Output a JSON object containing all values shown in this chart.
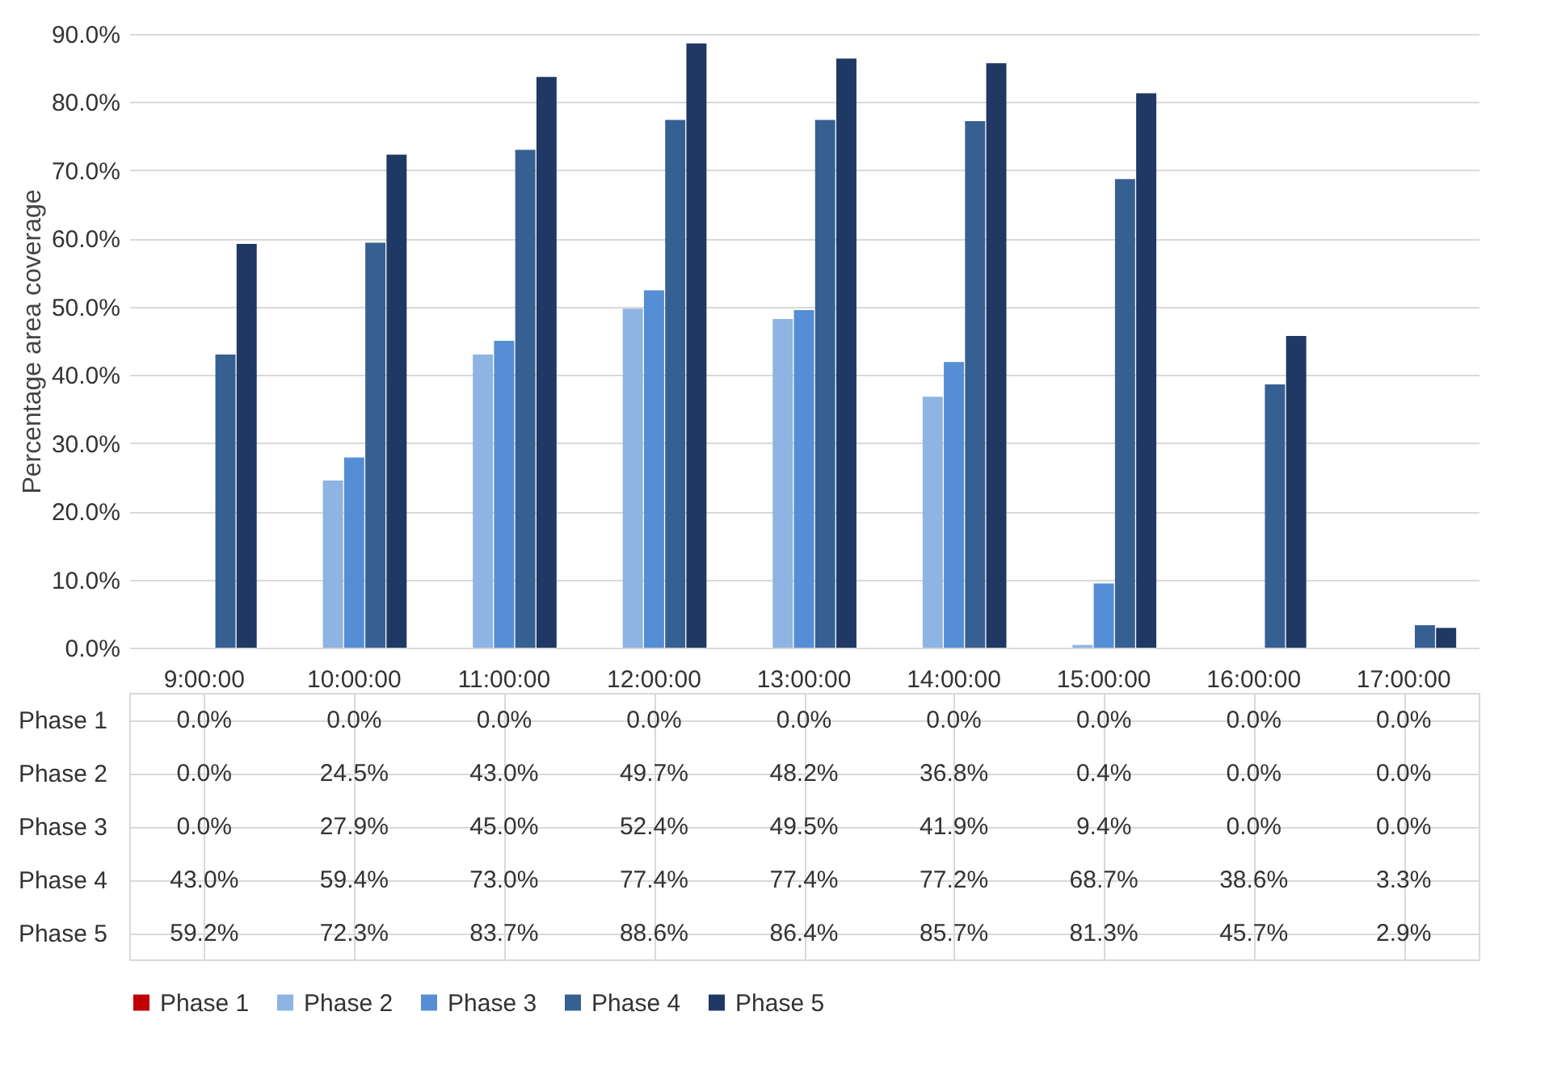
{
  "chart_data": {
    "type": "bar",
    "ylabel": "Percentage area coverage",
    "categories": [
      "9:00:00",
      "10:00:00",
      "11:00:00",
      "12:00:00",
      "13:00:00",
      "14:00:00",
      "15:00:00",
      "16:00:00",
      "17:00:00"
    ],
    "ylim": [
      0,
      90
    ],
    "yticks": [
      {
        "value": 0,
        "label": "0.0%"
      },
      {
        "value": 10,
        "label": "10.0%"
      },
      {
        "value": 20,
        "label": "20.0%"
      },
      {
        "value": 30,
        "label": "30.0%"
      },
      {
        "value": 40,
        "label": "40.0%"
      },
      {
        "value": 50,
        "label": "50.0%"
      },
      {
        "value": 60,
        "label": "60.0%"
      },
      {
        "value": 70,
        "label": "70.0%"
      },
      {
        "value": 80,
        "label": "80.0%"
      },
      {
        "value": 90,
        "label": "90.0%"
      }
    ],
    "grid": "y",
    "legend": "bottom",
    "series": [
      {
        "name": "Phase 1",
        "color": "#c00000",
        "values": [
          0,
          0,
          0,
          0,
          0,
          0,
          0,
          0,
          0
        ],
        "value_labels": [
          "0.0%",
          "0.0%",
          "0.0%",
          "0.0%",
          "0.0%",
          "0.0%",
          "0.0%",
          "0.0%",
          "0.0%"
        ]
      },
      {
        "name": "Phase 2",
        "color": "#8db4e2",
        "values": [
          0,
          24.5,
          43.0,
          49.7,
          48.2,
          36.8,
          0.4,
          0,
          0
        ],
        "value_labels": [
          "0.0%",
          "24.5%",
          "43.0%",
          "49.7%",
          "48.2%",
          "36.8%",
          "0.4%",
          "0.0%",
          "0.0%"
        ]
      },
      {
        "name": "Phase 3",
        "color": "#558ed5",
        "values": [
          0,
          27.9,
          45.0,
          52.4,
          49.5,
          41.9,
          9.4,
          0,
          0
        ],
        "value_labels": [
          "0.0%",
          "27.9%",
          "45.0%",
          "52.4%",
          "49.5%",
          "41.9%",
          "9.4%",
          "0.0%",
          "0.0%"
        ]
      },
      {
        "name": "Phase 4",
        "color": "#376092",
        "values": [
          43.0,
          59.4,
          73.0,
          77.4,
          77.4,
          77.2,
          68.7,
          38.6,
          3.3
        ],
        "value_labels": [
          "43.0%",
          "59.4%",
          "73.0%",
          "77.4%",
          "77.4%",
          "77.2%",
          "68.7%",
          "38.6%",
          "3.3%"
        ]
      },
      {
        "name": "Phase 5",
        "color": "#1f3864",
        "values": [
          59.2,
          72.3,
          83.7,
          88.6,
          86.4,
          85.7,
          81.3,
          45.7,
          2.9
        ],
        "value_labels": [
          "59.2%",
          "72.3%",
          "83.7%",
          "88.6%",
          "86.4%",
          "85.7%",
          "81.3%",
          "45.7%",
          "2.9%"
        ]
      }
    ]
  }
}
